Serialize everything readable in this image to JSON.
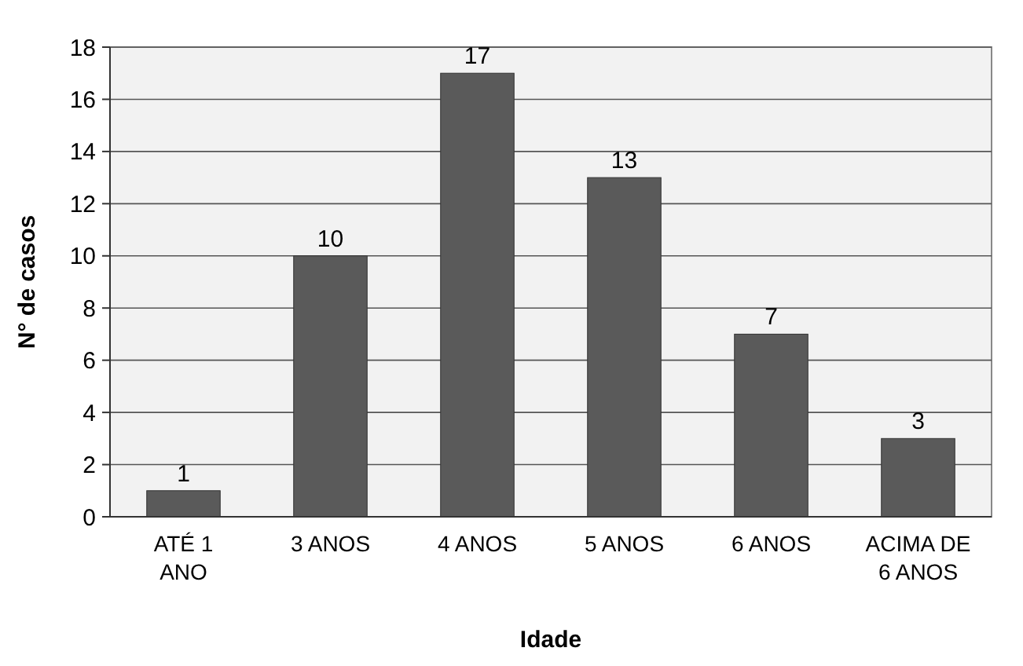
{
  "chart_data": {
    "type": "bar",
    "xlabel": "Idade",
    "ylabel": "N° de casos",
    "categories": [
      "ATÉ 1 ANO",
      "3 ANOS",
      "4 ANOS",
      "5 ANOS",
      "6 ANOS",
      "ACIMA DE 6 ANOS"
    ],
    "values": [
      1,
      10,
      17,
      13,
      7,
      3
    ],
    "color": "#5a5a5a",
    "ylim": [
      0,
      18
    ],
    "yticks": [
      0,
      2,
      4,
      6,
      8,
      10,
      12,
      14,
      16,
      18
    ],
    "grid": "y",
    "data_labels": true
  }
}
